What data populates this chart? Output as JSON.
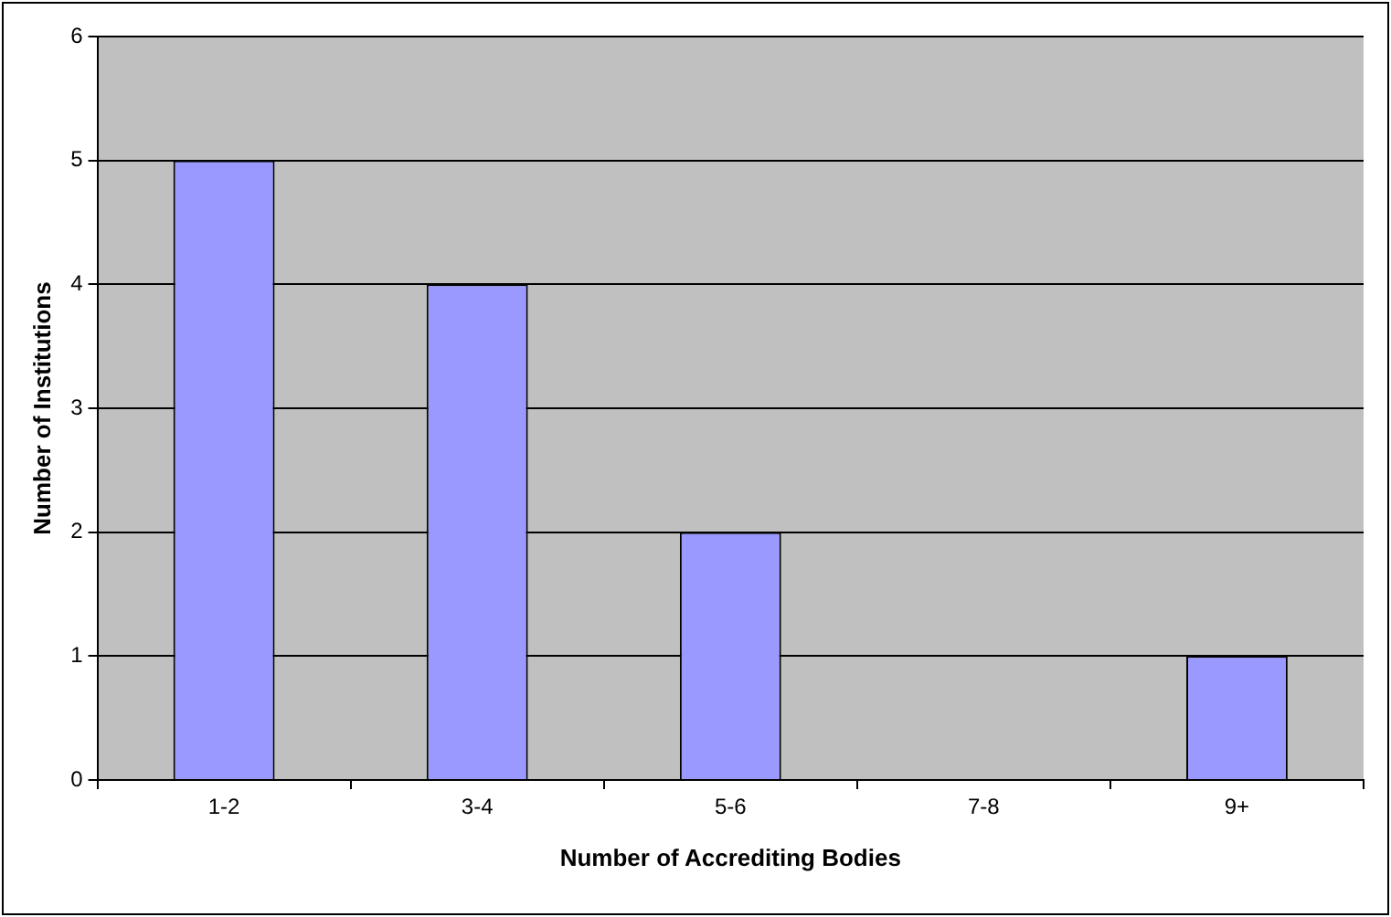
{
  "chart_data": {
    "type": "bar",
    "xlabel": "Number of Accrediting Bodies",
    "ylabel": "Number of Institutions",
    "categories": [
      "1-2",
      "3-4",
      "5-6",
      "7-8",
      "9+"
    ],
    "values": [
      5,
      4,
      2,
      0,
      1
    ],
    "color": "#9999ff",
    "ylim": [
      0,
      6
    ],
    "yticks": [
      0,
      1,
      2,
      3,
      4,
      5,
      6
    ],
    "grid": "y"
  }
}
